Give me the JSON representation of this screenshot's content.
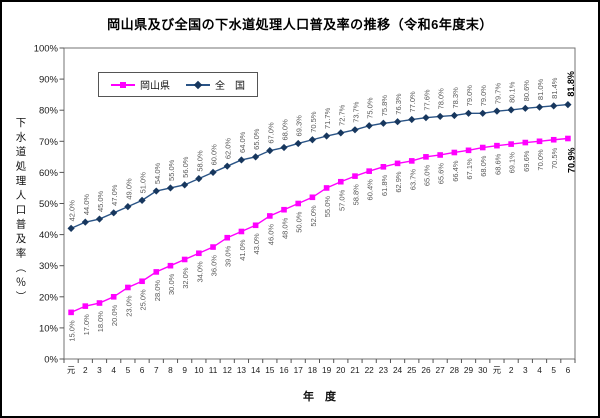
{
  "chart": {
    "title": "岡山県及び全国の下水道処理人口普及率の推移（令和6年度末）",
    "y_axis_title": "下水道処理人口普及率（％）",
    "x_axis_title": "年　度",
    "legend": {
      "okayama_label": "岡山県",
      "zenkoku_label": "全　国"
    }
  },
  "chart_data": {
    "type": "line",
    "title": "岡山県及び全国の下水道処理人口普及率の推移（令和6年度末）",
    "xlabel": "年　度",
    "ylabel": "下水道処理人口普及率（％）",
    "ylim": [
      0,
      100
    ],
    "y_tick_labels": [
      "0%",
      "10%",
      "20%",
      "30%",
      "40%",
      "50%",
      "60%",
      "70%",
      "80%",
      "90%",
      "100%"
    ],
    "grid": false,
    "legend_position": "inside-top-left",
    "x_categories": [
      "元",
      "2",
      "3",
      "4",
      "5",
      "6",
      "7",
      "8",
      "9",
      "10",
      "11",
      "12",
      "13",
      "14",
      "15",
      "16",
      "17",
      "18",
      "19",
      "20",
      "21",
      "22",
      "23",
      "24",
      "25",
      "26",
      "27",
      "28",
      "29",
      "30",
      "元",
      "2",
      "3",
      "4",
      "5",
      "6"
    ],
    "series": [
      {
        "name": "全　国",
        "marker": "diamond",
        "color": "#17375E",
        "line_color": "#2A5486",
        "label_position": "above",
        "values": [
          42.0,
          44.0,
          45.0,
          47.0,
          49.0,
          51.0,
          54.0,
          55.0,
          56.0,
          58.0,
          60.0,
          62.0,
          64.0,
          65.0,
          67.0,
          68.0,
          69.3,
          70.5,
          71.7,
          72.7,
          73.7,
          75.0,
          75.8,
          76.3,
          77.0,
          77.6,
          78.0,
          78.3,
          79.0,
          79.0,
          79.7,
          80.1,
          80.6,
          81.0,
          81.4,
          81.8
        ]
      },
      {
        "name": "岡山県",
        "marker": "square",
        "color": "#FF00FF",
        "line_color": "#FF00FF",
        "label_position": "below",
        "values": [
          15.0,
          17.0,
          18.0,
          20.0,
          23.0,
          25.0,
          28.0,
          30.0,
          32.0,
          34.0,
          36.0,
          39.0,
          41.0,
          43.0,
          46.0,
          48.0,
          50.0,
          52.0,
          55.0,
          57.0,
          58.8,
          60.4,
          61.8,
          62.9,
          63.7,
          65.0,
          65.6,
          66.4,
          67.1,
          68.0,
          68.6,
          69.1,
          69.6,
          70.0,
          70.5,
          70.9
        ]
      }
    ],
    "final_values": {
      "okayama": "70.9%",
      "zenkoku": "81.8%"
    },
    "label_color": "#595959",
    "final_label_color": "#000000"
  }
}
